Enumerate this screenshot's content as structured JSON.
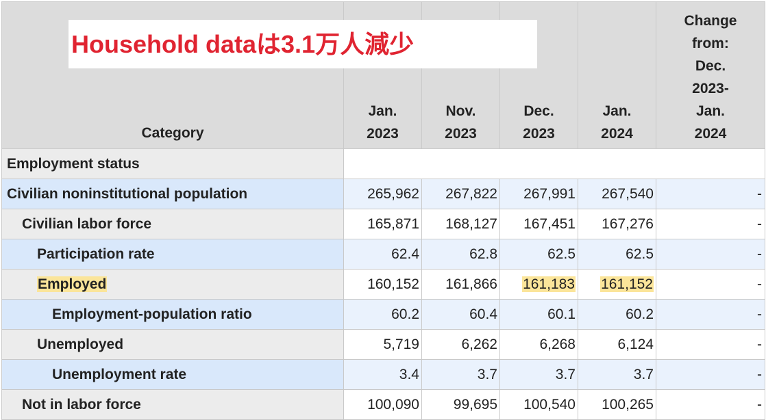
{
  "banner": "Household dataは3.1万人減少",
  "headers": {
    "category": "Category",
    "columns": [
      [
        "Jan.",
        "2023"
      ],
      [
        "Nov.",
        "2023"
      ],
      [
        "Dec.",
        "2023"
      ],
      [
        "Jan.",
        "2024"
      ],
      [
        "Change",
        "from:",
        "Dec.",
        "2023-",
        "Jan.",
        "2024"
      ]
    ]
  },
  "section": "Employment status",
  "rows": [
    {
      "label": "Civilian noninstitutional population",
      "indent": 0,
      "values": [
        "265,962",
        "267,822",
        "267,991",
        "267,540"
      ],
      "change": "-"
    },
    {
      "label": "Civilian labor force",
      "indent": 1,
      "values": [
        "165,871",
        "168,127",
        "167,451",
        "167,276"
      ],
      "change": "-"
    },
    {
      "label": "Participation rate",
      "indent": 2,
      "values": [
        "62.4",
        "62.8",
        "62.5",
        "62.5"
      ],
      "change": "-"
    },
    {
      "label": "Employed",
      "indent": 2,
      "values": [
        "160,152",
        "161,866",
        "161,183",
        "161,152"
      ],
      "change": "-",
      "highlight_label": true,
      "highlight_values": [
        2,
        3
      ]
    },
    {
      "label": "Employment-population ratio",
      "indent": 3,
      "values": [
        "60.2",
        "60.4",
        "60.1",
        "60.2"
      ],
      "change": "-"
    },
    {
      "label": "Unemployed",
      "indent": 2,
      "values": [
        "5,719",
        "6,262",
        "6,268",
        "6,124"
      ],
      "change": "-"
    },
    {
      "label": "Unemployment rate",
      "indent": 3,
      "values": [
        "3.4",
        "3.7",
        "3.7",
        "3.7"
      ],
      "change": "-"
    },
    {
      "label": "Not in labor force",
      "indent": 1,
      "values": [
        "100,090",
        "99,695",
        "100,540",
        "100,265"
      ],
      "change": "-"
    }
  ],
  "colors": {
    "header_bg": "#dcdcdc",
    "row_blue_label": "#d9e8fb",
    "row_blue_value": "#eaf2fd",
    "row_gray_label": "#ececec",
    "highlight": "#fbe59a",
    "banner_text": "#e02431"
  }
}
